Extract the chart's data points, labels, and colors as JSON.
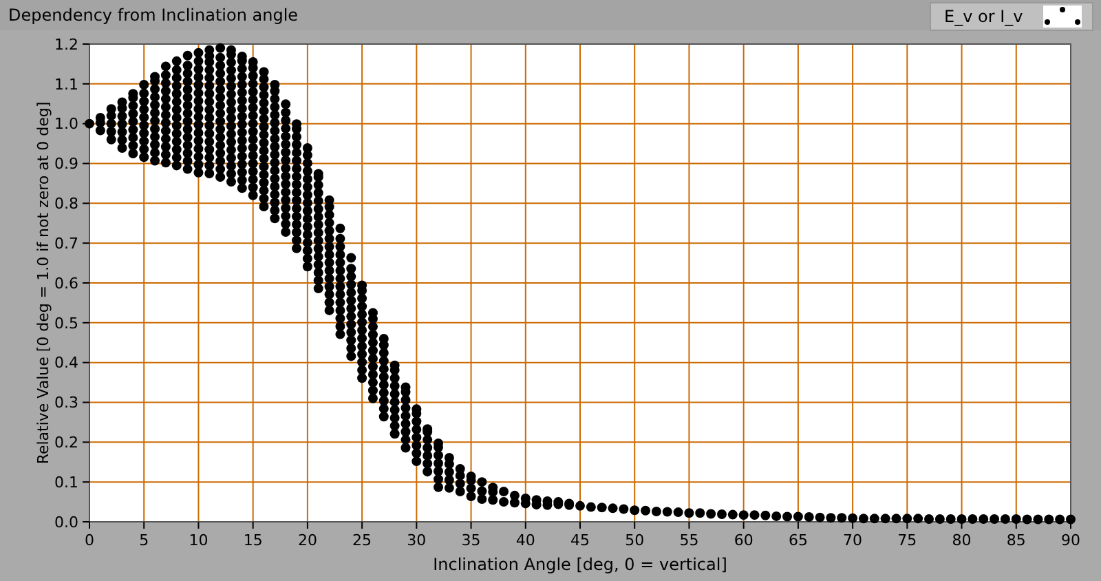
{
  "chart_data": {
    "type": "scatter",
    "title": "Dependency from Inclination angle",
    "xlabel": "Inclination Angle [deg, 0 = vertical]",
    "ylabel": "Relative Value [0 deg = 1.0 if not zero at 0 deg]",
    "series": [
      {
        "name": "E_v or I_v",
        "color": "#000000",
        "x": [
          0,
          1,
          1,
          1,
          2,
          2,
          2,
          2,
          2,
          3,
          3,
          3,
          3,
          3,
          3,
          3,
          4,
          4,
          4,
          4,
          4,
          4,
          4,
          4,
          4,
          5,
          5,
          5,
          5,
          5,
          5,
          5,
          5,
          5,
          5,
          6,
          6,
          6,
          6,
          6,
          6,
          6,
          6,
          6,
          6,
          6,
          6,
          7,
          7,
          7,
          7,
          7,
          7,
          7,
          7,
          7,
          7,
          7,
          7,
          7,
          8,
          8,
          8,
          8,
          8,
          8,
          8,
          8,
          8,
          8,
          8,
          8,
          8,
          8,
          9,
          9,
          9,
          9,
          9,
          9,
          9,
          9,
          9,
          9,
          9,
          9,
          9,
          9,
          9,
          10,
          10,
          10,
          10,
          10,
          10,
          10,
          10,
          10,
          10,
          10,
          10,
          10,
          10,
          10,
          10,
          11,
          11,
          11,
          11,
          11,
          11,
          11,
          11,
          11,
          11,
          11,
          11,
          11,
          11,
          11,
          11,
          11,
          12,
          12,
          12,
          12,
          12,
          12,
          12,
          12,
          12,
          12,
          12,
          12,
          12,
          12,
          12,
          12,
          12,
          13,
          13,
          13,
          13,
          13,
          13,
          13,
          13,
          13,
          13,
          13,
          13,
          13,
          13,
          13,
          13,
          13,
          13,
          14,
          14,
          14,
          14,
          14,
          14,
          14,
          14,
          14,
          14,
          14,
          14,
          14,
          14,
          14,
          14,
          14,
          14,
          15,
          15,
          15,
          15,
          15,
          15,
          15,
          15,
          15,
          15,
          15,
          15,
          15,
          15,
          15,
          15,
          15,
          15,
          16,
          16,
          16,
          16,
          16,
          16,
          16,
          16,
          16,
          16,
          16,
          16,
          16,
          16,
          16,
          16,
          16,
          16,
          17,
          17,
          17,
          17,
          17,
          17,
          17,
          17,
          17,
          17,
          17,
          17,
          17,
          17,
          17,
          17,
          17,
          17,
          18,
          18,
          18,
          18,
          18,
          18,
          18,
          18,
          18,
          18,
          18,
          18,
          18,
          18,
          18,
          18,
          18,
          19,
          19,
          19,
          19,
          19,
          19,
          19,
          19,
          19,
          19,
          19,
          19,
          19,
          19,
          19,
          19,
          19,
          20,
          20,
          20,
          20,
          20,
          20,
          20,
          20,
          20,
          20,
          20,
          20,
          20,
          20,
          20,
          20,
          21,
          21,
          21,
          21,
          21,
          21,
          21,
          21,
          21,
          21,
          21,
          21,
          21,
          21,
          21,
          21,
          22,
          22,
          22,
          22,
          22,
          22,
          22,
          22,
          22,
          22,
          22,
          22,
          22,
          22,
          22,
          23,
          23,
          23,
          23,
          23,
          23,
          23,
          23,
          23,
          23,
          23,
          23,
          23,
          23,
          24,
          24,
          24,
          24,
          24,
          24,
          24,
          24,
          24,
          24,
          24,
          24,
          24,
          25,
          25,
          25,
          25,
          25,
          25,
          25,
          25,
          25,
          25,
          25,
          25,
          25,
          26,
          26,
          26,
          26,
          26,
          26,
          26,
          26,
          26,
          26,
          26,
          26,
          27,
          27,
          27,
          27,
          27,
          27,
          27,
          27,
          27,
          27,
          27,
          28,
          28,
          28,
          28,
          28,
          28,
          28,
          28,
          28,
          28,
          29,
          29,
          29,
          29,
          29,
          29,
          29,
          29,
          29,
          30,
          30,
          30,
          30,
          30,
          30,
          30,
          30,
          31,
          31,
          31,
          31,
          31,
          31,
          31,
          32,
          32,
          32,
          32,
          32,
          32,
          32,
          33,
          33,
          33,
          33,
          33,
          34,
          34,
          34,
          34,
          35,
          35,
          35,
          35,
          36,
          36,
          36,
          37,
          37,
          37,
          38,
          38,
          39,
          39,
          40,
          40,
          41,
          41,
          42,
          42,
          43,
          43,
          44,
          44,
          45,
          46,
          47,
          48,
          49,
          50,
          51,
          52,
          53,
          54,
          55,
          56,
          57,
          58,
          59,
          60,
          61,
          62,
          63,
          64,
          65,
          66,
          67,
          68,
          69,
          70,
          71,
          72,
          73,
          74,
          75,
          76,
          77,
          78,
          79,
          80,
          81,
          82,
          83,
          84,
          85,
          86,
          87,
          88,
          89,
          90
        ],
        "values": [
          1.0,
          0.983,
          1.003,
          1.015,
          0.96,
          0.98,
          1.0,
          1.02,
          1.037,
          0.939,
          0.959,
          0.979,
          0.999,
          1.019,
          1.039,
          1.054,
          0.925,
          0.945,
          0.965,
          0.985,
          1.005,
          1.025,
          1.045,
          1.065,
          1.075,
          0.916,
          0.936,
          0.956,
          0.976,
          0.996,
          1.016,
          1.036,
          1.056,
          1.076,
          1.098,
          0.907,
          0.927,
          0.947,
          0.967,
          0.987,
          1.007,
          1.027,
          1.047,
          1.067,
          1.087,
          1.107,
          1.118,
          0.902,
          0.922,
          0.942,
          0.962,
          0.982,
          1.002,
          1.022,
          1.042,
          1.062,
          1.082,
          1.102,
          1.122,
          1.144,
          0.895,
          0.915,
          0.935,
          0.955,
          0.975,
          0.995,
          1.015,
          1.035,
          1.055,
          1.075,
          1.095,
          1.115,
          1.135,
          1.157,
          0.886,
          0.906,
          0.926,
          0.946,
          0.966,
          0.986,
          1.006,
          1.026,
          1.046,
          1.066,
          1.086,
          1.106,
          1.126,
          1.146,
          1.171,
          0.877,
          0.897,
          0.917,
          0.937,
          0.957,
          0.977,
          0.997,
          1.017,
          1.037,
          1.057,
          1.077,
          1.097,
          1.117,
          1.137,
          1.157,
          1.178,
          0.875,
          0.895,
          0.915,
          0.935,
          0.955,
          0.975,
          0.995,
          1.015,
          1.035,
          1.055,
          1.075,
          1.095,
          1.115,
          1.135,
          1.155,
          1.17,
          1.185,
          0.866,
          0.886,
          0.906,
          0.926,
          0.946,
          0.966,
          0.986,
          1.006,
          1.026,
          1.046,
          1.066,
          1.086,
          1.106,
          1.126,
          1.146,
          1.166,
          1.19,
          0.854,
          0.874,
          0.894,
          0.914,
          0.934,
          0.954,
          0.974,
          0.994,
          1.014,
          1.034,
          1.054,
          1.074,
          1.094,
          1.114,
          1.134,
          1.154,
          1.174,
          1.185,
          0.838,
          0.858,
          0.878,
          0.898,
          0.918,
          0.938,
          0.958,
          0.978,
          0.998,
          1.018,
          1.038,
          1.058,
          1.078,
          1.098,
          1.118,
          1.138,
          1.158,
          1.169,
          0.82,
          0.84,
          0.86,
          0.88,
          0.9,
          0.92,
          0.94,
          0.96,
          0.98,
          1.0,
          1.02,
          1.04,
          1.06,
          1.08,
          1.1,
          1.12,
          1.14,
          1.155,
          0.792,
          0.812,
          0.832,
          0.852,
          0.872,
          0.892,
          0.912,
          0.932,
          0.952,
          0.972,
          0.992,
          1.012,
          1.032,
          1.052,
          1.072,
          1.092,
          1.112,
          1.13,
          0.762,
          0.782,
          0.802,
          0.822,
          0.842,
          0.862,
          0.882,
          0.902,
          0.922,
          0.942,
          0.962,
          0.982,
          1.002,
          1.022,
          1.042,
          1.062,
          1.082,
          1.098,
          0.728,
          0.748,
          0.768,
          0.788,
          0.808,
          0.828,
          0.848,
          0.868,
          0.888,
          0.908,
          0.928,
          0.948,
          0.968,
          0.988,
          1.008,
          1.028,
          1.049,
          0.687,
          0.707,
          0.727,
          0.747,
          0.767,
          0.787,
          0.807,
          0.827,
          0.847,
          0.867,
          0.887,
          0.907,
          0.927,
          0.947,
          0.967,
          0.987,
          0.999,
          0.641,
          0.661,
          0.681,
          0.701,
          0.721,
          0.741,
          0.761,
          0.781,
          0.801,
          0.821,
          0.841,
          0.861,
          0.881,
          0.901,
          0.921,
          0.939,
          0.586,
          0.606,
          0.626,
          0.646,
          0.666,
          0.686,
          0.706,
          0.726,
          0.746,
          0.766,
          0.786,
          0.806,
          0.826,
          0.846,
          0.866,
          0.874,
          0.531,
          0.551,
          0.571,
          0.591,
          0.611,
          0.631,
          0.651,
          0.671,
          0.691,
          0.711,
          0.731,
          0.751,
          0.771,
          0.791,
          0.808,
          0.471,
          0.491,
          0.511,
          0.531,
          0.551,
          0.571,
          0.591,
          0.611,
          0.631,
          0.651,
          0.671,
          0.691,
          0.711,
          0.737,
          0.416,
          0.436,
          0.456,
          0.476,
          0.496,
          0.516,
          0.536,
          0.556,
          0.576,
          0.596,
          0.616,
          0.636,
          0.663,
          0.361,
          0.381,
          0.401,
          0.421,
          0.441,
          0.461,
          0.481,
          0.501,
          0.521,
          0.541,
          0.561,
          0.581,
          0.594,
          0.31,
          0.33,
          0.35,
          0.37,
          0.39,
          0.41,
          0.43,
          0.45,
          0.47,
          0.49,
          0.51,
          0.525,
          0.264,
          0.284,
          0.304,
          0.324,
          0.344,
          0.364,
          0.384,
          0.404,
          0.424,
          0.444,
          0.46,
          0.221,
          0.241,
          0.261,
          0.281,
          0.301,
          0.321,
          0.341,
          0.361,
          0.381,
          0.393,
          0.186,
          0.206,
          0.226,
          0.246,
          0.266,
          0.286,
          0.306,
          0.326,
          0.338,
          0.152,
          0.172,
          0.192,
          0.212,
          0.232,
          0.252,
          0.272,
          0.283,
          0.126,
          0.146,
          0.166,
          0.186,
          0.206,
          0.226,
          0.233,
          0.087,
          0.107,
          0.127,
          0.147,
          0.167,
          0.187,
          0.197,
          0.085,
          0.105,
          0.125,
          0.145,
          0.161,
          0.076,
          0.096,
          0.116,
          0.133,
          0.064,
          0.084,
          0.104,
          0.114,
          0.057,
          0.077,
          0.1,
          0.055,
          0.075,
          0.086,
          0.05,
          0.076,
          0.048,
          0.066,
          0.046,
          0.059,
          0.043,
          0.055,
          0.042,
          0.052,
          0.044,
          0.05,
          0.042,
          0.046,
          0.04,
          0.037,
          0.036,
          0.034,
          0.032,
          0.029,
          0.028,
          0.026,
          0.025,
          0.024,
          0.022,
          0.022,
          0.02,
          0.019,
          0.018,
          0.017,
          0.017,
          0.016,
          0.014,
          0.013,
          0.013,
          0.012,
          0.011,
          0.01,
          0.01,
          0.009,
          0.008,
          0.008,
          0.008,
          0.008,
          0.008,
          0.008,
          0.007,
          0.007,
          0.007,
          0.007,
          0.007,
          0.007,
          0.007,
          0.007,
          0.007,
          0.006,
          0.006,
          0.006,
          0.006,
          0.006
        ]
      }
    ],
    "xlim": [
      0,
      90
    ],
    "xticks": [
      0,
      5,
      10,
      15,
      20,
      25,
      30,
      35,
      40,
      45,
      50,
      55,
      60,
      65,
      70,
      75,
      80,
      85,
      90
    ],
    "ylim": [
      0,
      1.2
    ],
    "yticks": [
      {
        "value": 0,
        "label": "0.0"
      },
      {
        "value": 0.1,
        "label": "0.1"
      },
      {
        "value": 0.2,
        "label": "0.2"
      },
      {
        "value": 0.3,
        "label": "0.3"
      },
      {
        "value": 0.4,
        "label": "0.4"
      },
      {
        "value": 0.5,
        "label": "0.5"
      },
      {
        "value": 0.6,
        "label": "0.6"
      },
      {
        "value": 0.7,
        "label": "0.7"
      },
      {
        "value": 0.8,
        "label": "0.8"
      },
      {
        "value": 0.9,
        "label": "0.9"
      },
      {
        "value": 1.0,
        "label": "1.0"
      },
      {
        "value": 1.1,
        "label": "1.1"
      },
      {
        "value": 1.2,
        "label": "1.2"
      }
    ],
    "grid": true,
    "legend": "top right",
    "marker": "circle"
  }
}
